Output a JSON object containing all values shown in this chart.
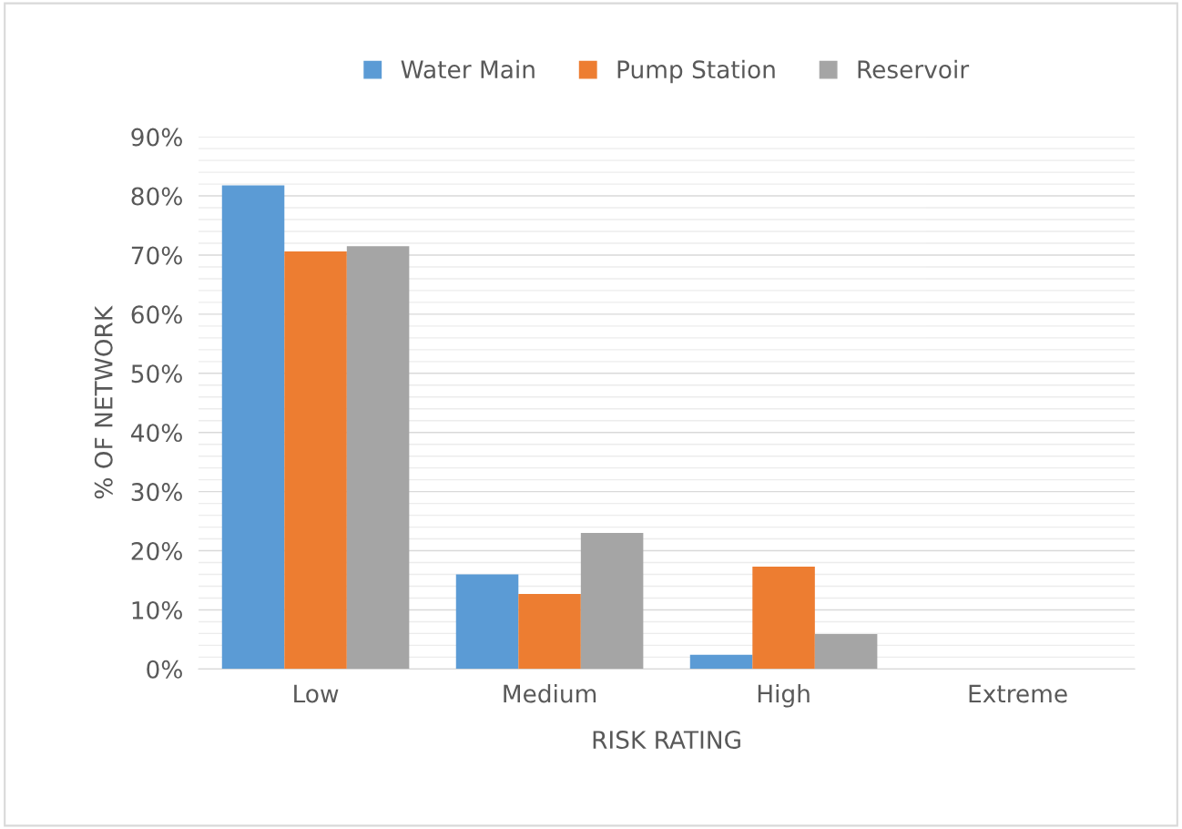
{
  "chart_data": {
    "type": "bar",
    "xlabel": "RISK RATING",
    "ylabel": "% OF NETWORK",
    "categories": [
      "Low",
      "Medium",
      "High",
      "Extreme"
    ],
    "series": [
      {
        "name": "Water Main",
        "color": "#5b9bd5",
        "values": [
          81.8,
          16,
          2.4,
          0
        ]
      },
      {
        "name": "Pump Station",
        "color": "#ed7d31",
        "values": [
          70.6,
          12.7,
          17.3,
          0
        ]
      },
      {
        "name": "Reservoir",
        "color": "#a5a5a5",
        "values": [
          71.5,
          23,
          5.9,
          0
        ]
      }
    ],
    "ylim": [
      0,
      90
    ],
    "yticks": [
      {
        "value": 0,
        "label": "0%"
      },
      {
        "value": 2,
        "label": null
      },
      {
        "value": 4,
        "label": null
      },
      {
        "value": 6,
        "label": null
      },
      {
        "value": 8,
        "label": null
      },
      {
        "value": 10,
        "label": "10%"
      },
      {
        "value": 12,
        "label": null
      },
      {
        "value": 14,
        "label": null
      },
      {
        "value": 16,
        "label": null
      },
      {
        "value": 18,
        "label": null
      },
      {
        "value": 20,
        "label": "20%"
      },
      {
        "value": 22,
        "label": null
      },
      {
        "value": 24,
        "label": null
      },
      {
        "value": 26,
        "label": null
      },
      {
        "value": 28,
        "label": null
      },
      {
        "value": 30,
        "label": "30%"
      },
      {
        "value": 32,
        "label": null
      },
      {
        "value": 34,
        "label": null
      },
      {
        "value": 36,
        "label": null
      },
      {
        "value": 38,
        "label": null
      },
      {
        "value": 40,
        "label": "40%"
      },
      {
        "value": 42,
        "label": null
      },
      {
        "value": 44,
        "label": null
      },
      {
        "value": 46,
        "label": null
      },
      {
        "value": 48,
        "label": null
      },
      {
        "value": 50,
        "label": "50%"
      },
      {
        "value": 52,
        "label": null
      },
      {
        "value": 54,
        "label": null
      },
      {
        "value": 56,
        "label": null
      },
      {
        "value": 58,
        "label": null
      },
      {
        "value": 60,
        "label": "60%"
      },
      {
        "value": 62,
        "label": null
      },
      {
        "value": 64,
        "label": null
      },
      {
        "value": 66,
        "label": null
      },
      {
        "value": 68,
        "label": null
      },
      {
        "value": 70,
        "label": "70%"
      },
      {
        "value": 72,
        "label": null
      },
      {
        "value": 74,
        "label": null
      },
      {
        "value": 76,
        "label": null
      },
      {
        "value": 78,
        "label": null
      },
      {
        "value": 80,
        "label": "80%"
      },
      {
        "value": 82,
        "label": null
      },
      {
        "value": 84,
        "label": null
      },
      {
        "value": 86,
        "label": null
      },
      {
        "value": 88,
        "label": null
      },
      {
        "value": 90,
        "label": "90%"
      }
    ],
    "grid": "y",
    "legend": "top"
  }
}
